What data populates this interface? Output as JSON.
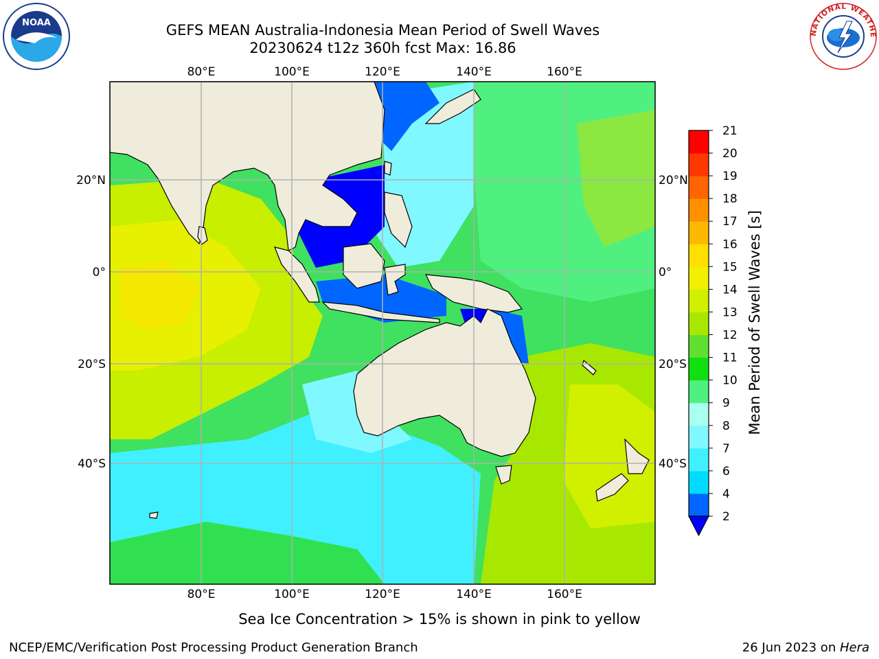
{
  "header": {
    "title_line1": "GEFS MEAN Australia-Indonesia Mean Period of Swell Waves",
    "title_line2": "20230624 t12z 360h fcst   Max: 16.86"
  },
  "logos": {
    "left": "noaa-logo",
    "right": "nws-logo",
    "noaa_text": "NOAA",
    "nws_ring_text": "NATIONAL WEATHER SERVICE"
  },
  "map": {
    "lon_ticks": [
      "80°E",
      "100°E",
      "120°E",
      "140°E",
      "160°E"
    ],
    "lat_ticks": [
      "20°N",
      "0°",
      "20°S",
      "40°S"
    ],
    "ocean_color": "#40e060",
    "land_color": "#efecdc"
  },
  "colorbar": {
    "label": "Mean Period of Swell Waves [s]",
    "levels": [
      "2",
      "4",
      "6",
      "7",
      "8",
      "9",
      "10",
      "11",
      "12",
      "13",
      "14",
      "15",
      "16",
      "17",
      "18",
      "19",
      "20",
      "21"
    ],
    "colors": [
      "#0066ff",
      "#00dcff",
      "#40f0ff",
      "#80f8ff",
      "#aaffee",
      "#50f080",
      "#10e010",
      "#60e030",
      "#a8e800",
      "#d0f000",
      "#f0f000",
      "#ffe000",
      "#ffb800",
      "#ff9000",
      "#ff6400",
      "#ff3800",
      "#ff0000"
    ],
    "under_color": "#0000ff"
  },
  "footer": {
    "ice_note": "Sea Ice Concentration > 15% is shown in pink to yellow",
    "credit_left": "NCEP/EMC/Verification Post Processing Product Generation Branch",
    "credit_date": "26 Jun 2023 on ",
    "credit_machine": "Hera"
  }
}
